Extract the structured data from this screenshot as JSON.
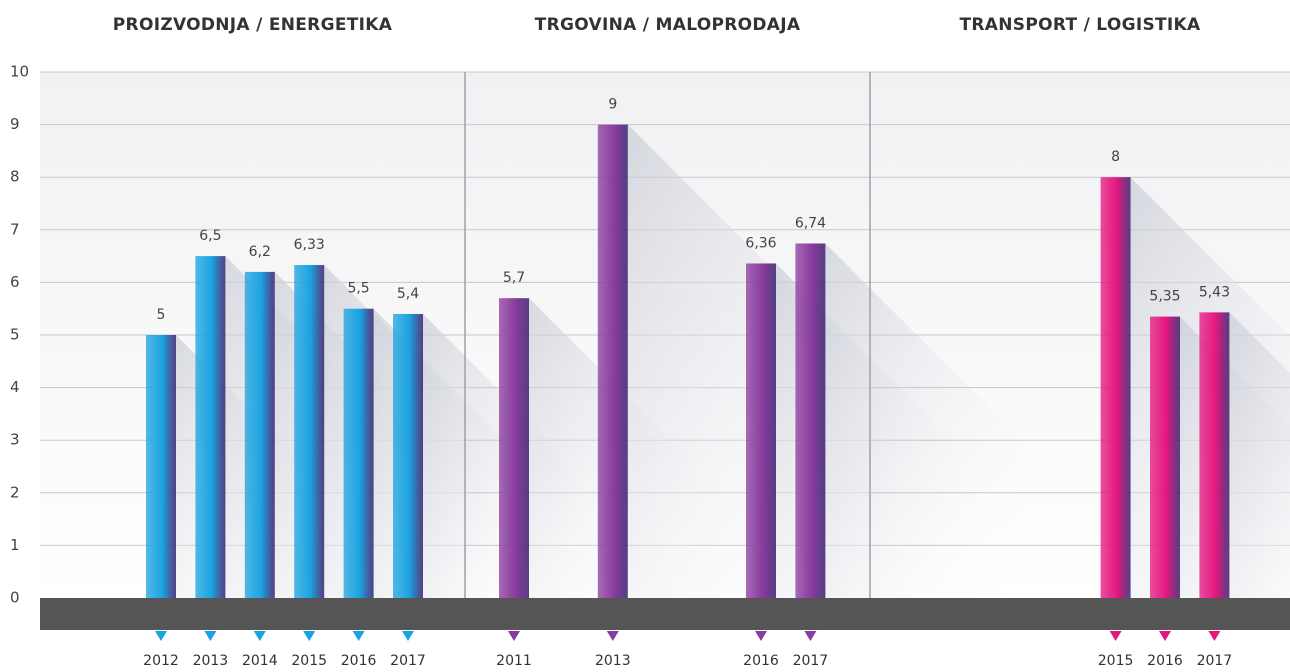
{
  "chart_data": [
    {
      "type": "bar",
      "title": "PROIZVODNJA / ENERGETIKA",
      "categories": [
        "2012",
        "2013",
        "2014",
        "2015",
        "2016",
        "2017"
      ],
      "values": [
        5,
        6.5,
        6.2,
        6.33,
        5.5,
        5.4
      ],
      "value_labels": [
        "5",
        "6,5",
        "6,2",
        "6,33",
        "5,5",
        "5,4"
      ],
      "color": "#1aa3e0",
      "ylim": [
        0,
        10
      ],
      "yticks": [
        0,
        1,
        2,
        3,
        4,
        5,
        6,
        7,
        8,
        9,
        10
      ],
      "grid": true
    },
    {
      "type": "bar",
      "title": "TRGOVINA / MALOPRODAJA",
      "categories": [
        "2011",
        null,
        "2013",
        null,
        null,
        "2016",
        "2017"
      ],
      "values": [
        5.7,
        null,
        9,
        null,
        null,
        6.36,
        6.74
      ],
      "value_labels": [
        "5,7",
        null,
        "9",
        null,
        null,
        "6,36",
        "6,74"
      ],
      "color": "#8a3b9e",
      "ylim": [
        0,
        10
      ],
      "yticks": [
        0,
        1,
        2,
        3,
        4,
        5,
        6,
        7,
        8,
        9,
        10
      ],
      "grid": true
    },
    {
      "type": "bar",
      "title": "TRANSPORT / LOGISTIKA",
      "categories": [
        null,
        null,
        null,
        null,
        "2015",
        "2016",
        "2017"
      ],
      "values": [
        null,
        null,
        null,
        null,
        8,
        5.35,
        5.43
      ],
      "value_labels": [
        null,
        null,
        null,
        null,
        "8",
        "5,35",
        "5,43"
      ],
      "color": "#e5167f",
      "ylim": [
        0,
        10
      ],
      "yticks": [
        0,
        1,
        2,
        3,
        4,
        5,
        6,
        7,
        8,
        9,
        10
      ],
      "grid": true
    }
  ]
}
